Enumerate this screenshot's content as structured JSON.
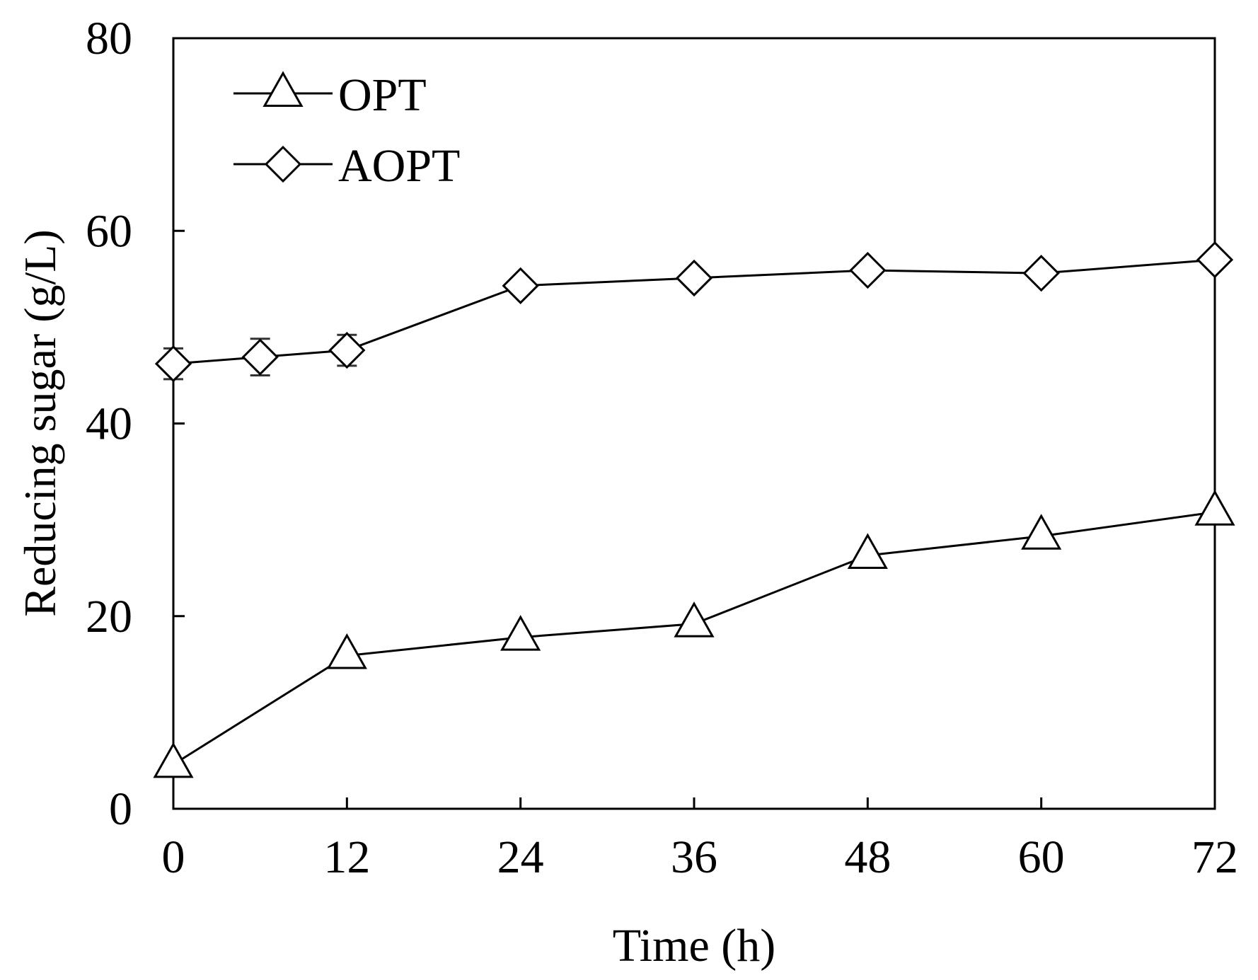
{
  "chart_data": {
    "type": "line",
    "title": "",
    "xlabel": "Time (h)",
    "ylabel": "Reducing sugar (g/L)",
    "xlim": [
      0,
      72
    ],
    "ylim": [
      0,
      80
    ],
    "xticks": [
      0,
      12,
      24,
      36,
      48,
      60,
      72
    ],
    "yticks": [
      0,
      20,
      40,
      60,
      80
    ],
    "xtick_labels": [
      "0",
      "12",
      "24",
      "36",
      "48",
      "60",
      "72"
    ],
    "ytick_labels": [
      "0",
      "20",
      "40",
      "60",
      "80"
    ],
    "grid": false,
    "legend_position": "top-left",
    "series": [
      {
        "name": "OPT",
        "marker": "triangle",
        "x": [
          0,
          12,
          24,
          36,
          48,
          60,
          72
        ],
        "y": [
          4.6,
          15.9,
          17.8,
          19.2,
          26.3,
          28.3,
          30.8
        ],
        "err": [
          0.3,
          0.4,
          0.4,
          0.4,
          0.4,
          0.3,
          0.3
        ]
      },
      {
        "name": "AOPT",
        "marker": "diamond",
        "x": [
          0,
          6,
          12,
          24,
          36,
          48,
          60,
          72
        ],
        "y": [
          46.2,
          46.9,
          47.6,
          54.3,
          55.1,
          55.9,
          55.6,
          57.0
        ],
        "err": [
          1.6,
          1.9,
          1.6,
          0.8,
          0.5,
          0.5,
          0.4,
          0.4
        ]
      }
    ]
  }
}
